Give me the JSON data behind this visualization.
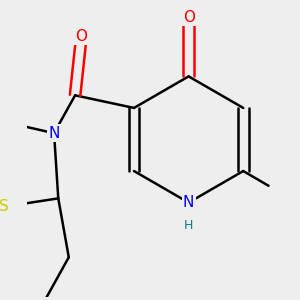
{
  "background_color": "#eeeeee",
  "atom_colors": {
    "O": "#ff0000",
    "N": "#0000ff",
    "S": "#cccc00",
    "NH": "#008080",
    "C": "#000000"
  },
  "bond_lw": 1.8,
  "dbo": 0.025
}
